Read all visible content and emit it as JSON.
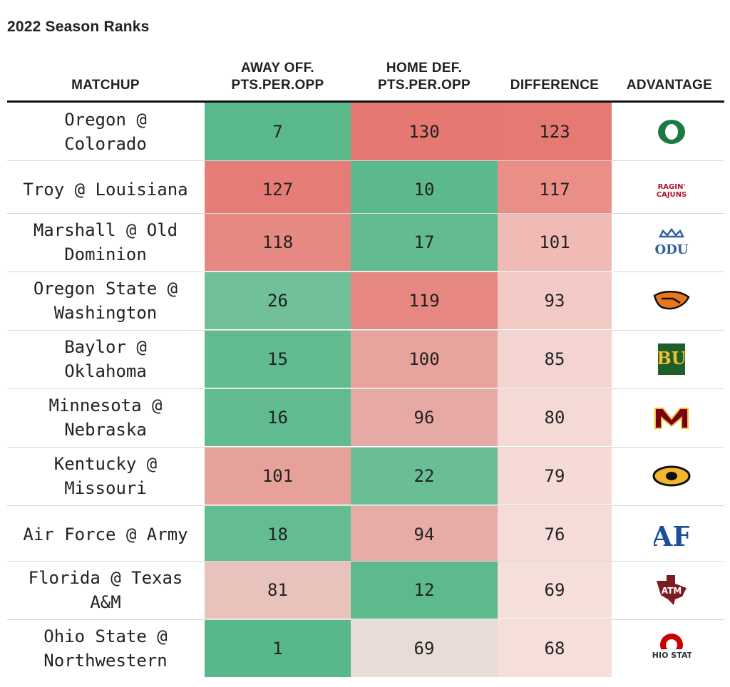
{
  "title": "2022 Season Ranks",
  "columns": {
    "matchup": "MATCHUP",
    "away_off": "AWAY OFF.\nPTS.PER.OPP",
    "home_def": "HOME DEF.\nPTS.PER.OPP",
    "difference": "DIFFERENCE",
    "advantage": "ADVANTAGE"
  },
  "colors": {
    "green_strong": "#5bb98a",
    "red_strong": "#e57a72",
    "neutral": "#ebebe6"
  },
  "chart_data": {
    "type": "table",
    "title": "2022 Season Ranks",
    "columns": [
      "MATCHUP",
      "AWAY OFF. PTS.PER.OPP",
      "HOME DEF. PTS.PER.OPP",
      "DIFFERENCE",
      "ADVANTAGE"
    ],
    "rows": [
      {
        "matchup": "Oregon @\nColorado",
        "away_off": 7,
        "home_def": 130,
        "difference": 123,
        "advantage_icon": "oregon-o-logo-icon"
      },
      {
        "matchup": "Troy @ Louisiana",
        "away_off": 127,
        "home_def": 10,
        "difference": 117,
        "advantage_icon": "ragin-cajuns-logo-icon"
      },
      {
        "matchup": "Marshall @ Old\nDominion",
        "away_off": 118,
        "home_def": 17,
        "difference": 101,
        "advantage_icon": "odu-logo-icon"
      },
      {
        "matchup": "Oregon State @\nWashington",
        "away_off": 26,
        "home_def": 119,
        "difference": 93,
        "advantage_icon": "beaver-logo-icon"
      },
      {
        "matchup": "Baylor @\nOklahoma",
        "away_off": 15,
        "home_def": 100,
        "difference": 85,
        "advantage_icon": "baylor-bu-logo-icon"
      },
      {
        "matchup": "Minnesota @\nNebraska",
        "away_off": 16,
        "home_def": 96,
        "difference": 80,
        "advantage_icon": "minnesota-m-logo-icon"
      },
      {
        "matchup": "Kentucky @\nMissouri",
        "away_off": 101,
        "home_def": 22,
        "difference": 79,
        "advantage_icon": "tiger-logo-icon"
      },
      {
        "matchup": "Air Force @ Army",
        "away_off": 18,
        "home_def": 94,
        "difference": 76,
        "advantage_icon": "air-force-af-logo-icon"
      },
      {
        "matchup": "Florida @ Texas\nA&M",
        "away_off": 81,
        "home_def": 12,
        "difference": 69,
        "advantage_icon": "texas-am-logo-icon"
      },
      {
        "matchup": "Ohio State @\nNorthwestern",
        "away_off": 1,
        "home_def": 69,
        "difference": 68,
        "advantage_icon": "ohio-state-logo-icon"
      }
    ]
  }
}
